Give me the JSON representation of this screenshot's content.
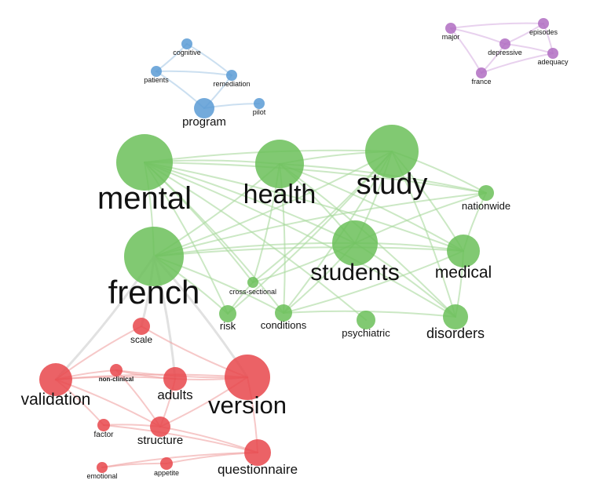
{
  "clusters": {
    "blue": {
      "node_color": "#5b9bd5",
      "edge_color": "#a9c9e6"
    },
    "purple": {
      "node_color": "#b06dc2",
      "edge_color": "#d9b3e3"
    },
    "green": {
      "node_color": "#6bbf59",
      "edge_color": "#a8d99c"
    },
    "red": {
      "node_color": "#e8474b",
      "edge_color": "#f0a4a4"
    },
    "grey": {
      "edge_color": "#d9d9d9"
    }
  },
  "nodes": [
    {
      "id": "cognitive",
      "label": "cognitive",
      "cluster": "blue"
    },
    {
      "id": "patients",
      "label": "patients",
      "cluster": "blue"
    },
    {
      "id": "remediation",
      "label": "remediation",
      "cluster": "blue"
    },
    {
      "id": "program",
      "label": "program",
      "cluster": "blue"
    },
    {
      "id": "pilot",
      "label": "pilot",
      "cluster": "blue"
    },
    {
      "id": "major",
      "label": "major",
      "cluster": "purple"
    },
    {
      "id": "episodes",
      "label": "episodes",
      "cluster": "purple"
    },
    {
      "id": "depressive",
      "label": "depressive",
      "cluster": "purple"
    },
    {
      "id": "adequacy",
      "label": "adequacy",
      "cluster": "purple"
    },
    {
      "id": "france",
      "label": "france",
      "cluster": "purple"
    },
    {
      "id": "mental",
      "label": "mental",
      "cluster": "green"
    },
    {
      "id": "health",
      "label": "health",
      "cluster": "green"
    },
    {
      "id": "study",
      "label": "study",
      "cluster": "green"
    },
    {
      "id": "nationwide",
      "label": "nationwide",
      "cluster": "green"
    },
    {
      "id": "french",
      "label": "french",
      "cluster": "green"
    },
    {
      "id": "students",
      "label": "students",
      "cluster": "green"
    },
    {
      "id": "medical",
      "label": "medical",
      "cluster": "green"
    },
    {
      "id": "cross-sectional",
      "label": "cross-sectional",
      "cluster": "green"
    },
    {
      "id": "risk",
      "label": "risk",
      "cluster": "green"
    },
    {
      "id": "conditions",
      "label": "conditions",
      "cluster": "green"
    },
    {
      "id": "psychiatric",
      "label": "psychiatric",
      "cluster": "green"
    },
    {
      "id": "disorders",
      "label": "disorders",
      "cluster": "green"
    },
    {
      "id": "scale",
      "label": "scale",
      "cluster": "red"
    },
    {
      "id": "non-clinical",
      "label": "non-clinical",
      "cluster": "red"
    },
    {
      "id": "validation",
      "label": "validation",
      "cluster": "red"
    },
    {
      "id": "adults",
      "label": "adults",
      "cluster": "red"
    },
    {
      "id": "version",
      "label": "version",
      "cluster": "red"
    },
    {
      "id": "factor",
      "label": "factor",
      "cluster": "red"
    },
    {
      "id": "structure",
      "label": "structure",
      "cluster": "red"
    },
    {
      "id": "questionnaire",
      "label": "questionnaire",
      "cluster": "red"
    },
    {
      "id": "emotional",
      "label": "emotional",
      "cluster": "red"
    },
    {
      "id": "appetite",
      "label": "appetite",
      "cluster": "red"
    }
  ],
  "edges": [
    [
      "cognitive",
      "patients",
      "blue"
    ],
    [
      "patients",
      "remediation",
      "blue"
    ],
    [
      "cognitive",
      "remediation",
      "blue"
    ],
    [
      "patients",
      "program",
      "blue"
    ],
    [
      "remediation",
      "program",
      "blue"
    ],
    [
      "program",
      "pilot",
      "blue"
    ],
    [
      "major",
      "depressive",
      "purple"
    ],
    [
      "major",
      "episodes",
      "purple"
    ],
    [
      "episodes",
      "depressive",
      "purple"
    ],
    [
      "episodes",
      "adequacy",
      "purple"
    ],
    [
      "depressive",
      "adequacy",
      "purple"
    ],
    [
      "depressive",
      "france",
      "purple"
    ],
    [
      "france",
      "adequacy",
      "purple"
    ],
    [
      "major",
      "france",
      "purple"
    ],
    [
      "mental",
      "health",
      "green"
    ],
    [
      "mental",
      "study",
      "green"
    ],
    [
      "mental",
      "nationwide",
      "green"
    ],
    [
      "mental",
      "french",
      "green"
    ],
    [
      "mental",
      "students",
      "green"
    ],
    [
      "mental",
      "medical",
      "green"
    ],
    [
      "mental",
      "conditions",
      "green"
    ],
    [
      "mental",
      "psychiatric",
      "green"
    ],
    [
      "mental",
      "disorders",
      "green"
    ],
    [
      "mental",
      "cross-sectional",
      "green"
    ],
    [
      "mental",
      "risk",
      "green"
    ],
    [
      "health",
      "study",
      "green"
    ],
    [
      "health",
      "students",
      "green"
    ],
    [
      "health",
      "medical",
      "green"
    ],
    [
      "health",
      "french",
      "green"
    ],
    [
      "health",
      "conditions",
      "green"
    ],
    [
      "health",
      "nationwide",
      "green"
    ],
    [
      "health",
      "disorders",
      "green"
    ],
    [
      "health",
      "cross-sectional",
      "green"
    ],
    [
      "study",
      "students",
      "green"
    ],
    [
      "study",
      "nationwide",
      "green"
    ],
    [
      "study",
      "french",
      "green"
    ],
    [
      "study",
      "medical",
      "green"
    ],
    [
      "study",
      "cross-sectional",
      "green"
    ],
    [
      "study",
      "conditions",
      "green"
    ],
    [
      "study",
      "risk",
      "green"
    ],
    [
      "study",
      "disorders",
      "green"
    ],
    [
      "french",
      "students",
      "green"
    ],
    [
      "french",
      "medical",
      "green"
    ],
    [
      "french",
      "nationwide",
      "green"
    ],
    [
      "french",
      "risk",
      "green"
    ],
    [
      "french",
      "conditions",
      "green"
    ],
    [
      "students",
      "medical",
      "green"
    ],
    [
      "students",
      "nationwide",
      "green"
    ],
    [
      "students",
      "conditions",
      "green"
    ],
    [
      "students",
      "cross-sectional",
      "green"
    ],
    [
      "students",
      "disorders",
      "green"
    ],
    [
      "medical",
      "disorders",
      "green"
    ],
    [
      "medical",
      "conditions",
      "green"
    ],
    [
      "medical",
      "nationwide",
      "green"
    ],
    [
      "conditions",
      "disorders",
      "green"
    ],
    [
      "risk",
      "cross-sectional",
      "green"
    ],
    [
      "french",
      "validation",
      "grey"
    ],
    [
      "french",
      "version",
      "grey"
    ],
    [
      "french",
      "adults",
      "grey"
    ],
    [
      "french",
      "scale",
      "grey"
    ],
    [
      "validation",
      "scale",
      "red"
    ],
    [
      "validation",
      "version",
      "red"
    ],
    [
      "validation",
      "adults",
      "red"
    ],
    [
      "validation",
      "non-clinical",
      "red"
    ],
    [
      "validation",
      "structure",
      "red"
    ],
    [
      "validation",
      "factor",
      "red"
    ],
    [
      "version",
      "adults",
      "red"
    ],
    [
      "version",
      "structure",
      "red"
    ],
    [
      "version",
      "questionnaire",
      "red"
    ],
    [
      "version",
      "non-clinical",
      "red"
    ],
    [
      "version",
      "scale",
      "red"
    ],
    [
      "adults",
      "structure",
      "red"
    ],
    [
      "adults",
      "non-clinical",
      "red"
    ],
    [
      "non-clinical",
      "structure",
      "red"
    ],
    [
      "factor",
      "structure",
      "red"
    ],
    [
      "structure",
      "questionnaire",
      "red"
    ],
    [
      "factor",
      "questionnaire",
      "red"
    ],
    [
      "emotional",
      "appetite",
      "red"
    ],
    [
      "appetite",
      "questionnaire",
      "red"
    ],
    [
      "emotional",
      "questionnaire",
      "red"
    ]
  ]
}
